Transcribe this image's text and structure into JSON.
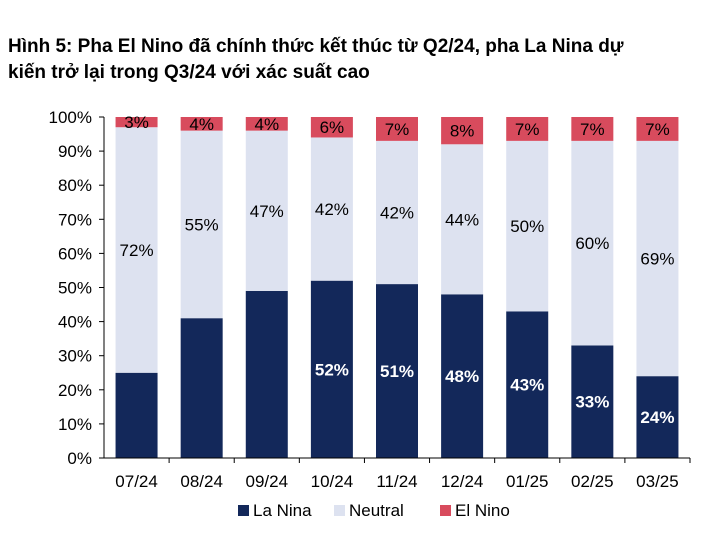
{
  "title": {
    "line1": "Hình 5: Pha El Nino đã chính thức kết thúc từ Q2/24, pha La Nina dự",
    "line2": "kiến trở lại trong Q3/24 với xác suất cao"
  },
  "colors": {
    "la_nina": "#13285a",
    "neutral": "#dde2f0",
    "el_nino": "#d84b5d"
  },
  "chart_data": {
    "type": "bar",
    "stacked": true,
    "categories": [
      "07/24",
      "08/24",
      "09/24",
      "10/24",
      "11/24",
      "12/24",
      "01/25",
      "02/25",
      "03/25"
    ],
    "series": [
      {
        "name": "La Nina",
        "values": [
          25,
          41,
          49,
          52,
          51,
          48,
          43,
          33,
          24
        ],
        "labels": [
          "",
          "",
          "",
          "52%",
          "51%",
          "48%",
          "43%",
          "33%",
          "24%"
        ]
      },
      {
        "name": "Neutral",
        "values": [
          72,
          55,
          47,
          42,
          42,
          44,
          50,
          60,
          69
        ],
        "labels": [
          "72%",
          "55%",
          "47%",
          "42%",
          "42%",
          "44%",
          "50%",
          "60%",
          "69%"
        ]
      },
      {
        "name": "El Nino",
        "values": [
          3,
          4,
          4,
          6,
          7,
          8,
          7,
          7,
          7
        ],
        "labels": [
          "3%",
          "4%",
          "4%",
          "6%",
          "7%",
          "8%",
          "7%",
          "7%",
          "7%"
        ]
      }
    ],
    "ylim": [
      0,
      100
    ],
    "yticks": [
      "0%",
      "10%",
      "20%",
      "30%",
      "40%",
      "50%",
      "60%",
      "70%",
      "80%",
      "90%",
      "100%"
    ],
    "legend": "bottom"
  }
}
